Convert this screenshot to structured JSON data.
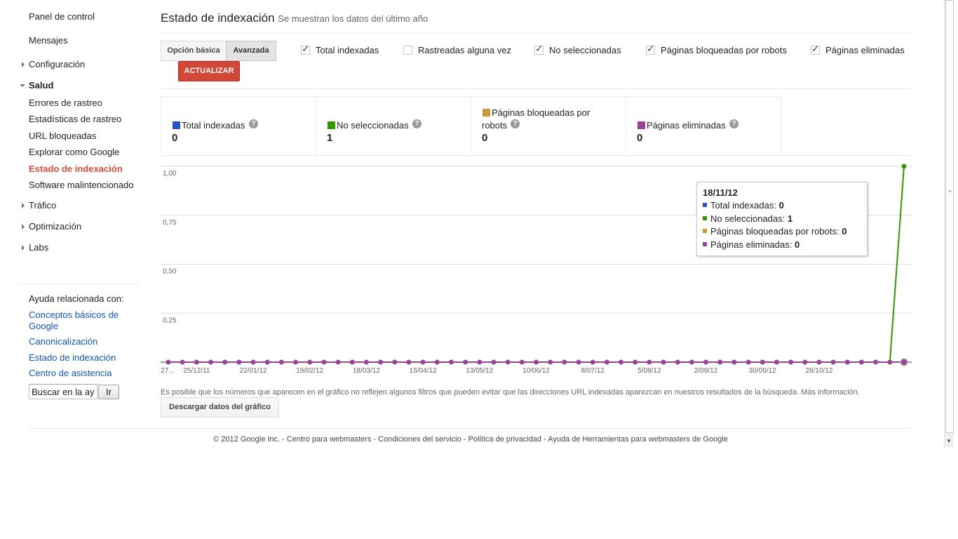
{
  "sidebar": {
    "items": [
      {
        "label": "Panel de control"
      },
      {
        "label": "Mensajes"
      },
      {
        "label": "Configuración"
      },
      {
        "label": "Salud"
      },
      {
        "label": "Errores de rastreo"
      },
      {
        "label": "Estadísticas de rastreo"
      },
      {
        "label": "URL bloqueadas"
      },
      {
        "label": "Explorar como Google"
      },
      {
        "label": "Estado de indexación"
      },
      {
        "label": "Software malintencionado"
      },
      {
        "label": "Tráfico"
      },
      {
        "label": "Optimización"
      },
      {
        "label": "Labs"
      }
    ],
    "help": {
      "title": "Ayuda relacionada con:",
      "links": [
        "Conceptos básicos de Google",
        "Canonicalización",
        "Estado de indexación",
        "Centro de asistencia"
      ],
      "search_value": "Buscar en la ayuda",
      "go_label": "Ir"
    }
  },
  "header": {
    "title": "Estado de indexación",
    "subtitle": "Se muestran los datos del último año"
  },
  "toolbar": {
    "basic_label": "Opción básica",
    "advanced_label": "Avanzada",
    "update_label": "ACTUALIZAR",
    "checkboxes": [
      {
        "label": "Total indexadas",
        "checked": true
      },
      {
        "label": "Rastreadas alguna vez",
        "checked": false
      },
      {
        "label": "No seleccionadas",
        "checked": true
      },
      {
        "label": "Páginas bloqueadas por robots",
        "checked": true
      },
      {
        "label": "Páginas eliminadas",
        "checked": true
      }
    ],
    "check_glyph": "✓"
  },
  "stats": [
    {
      "name": "Total indexadas",
      "value": "0",
      "color": "#2255cc"
    },
    {
      "name": "No seleccionadas",
      "value": "1",
      "color": "#339900"
    },
    {
      "name": "Páginas bloqueadas por robots",
      "value": "0",
      "color": "#cc9933"
    },
    {
      "name": "Páginas eliminadas",
      "value": "0",
      "color": "#994499"
    }
  ],
  "help_glyph": "?",
  "chart_data": {
    "type": "line",
    "ylim": [
      0,
      1
    ],
    "yticks": [
      "1,00",
      "0,75",
      "0,50",
      "0,25"
    ],
    "xtick_labels": [
      "27...",
      "25/12/11",
      "22/01/12",
      "19/02/12",
      "18/03/12",
      "15/04/12",
      "13/05/12",
      "10/06/12",
      "8/07/12",
      "5/08/12",
      "2/09/12",
      "30/09/12",
      "28/10/12"
    ],
    "point_count": 53,
    "series": [
      {
        "name": "Total indexadas",
        "color": "#2255cc",
        "values": "all 0"
      },
      {
        "name": "No seleccionadas",
        "color": "#339900",
        "values": "0 for first 52 weeks, 1 on 18/11/12"
      },
      {
        "name": "Páginas bloqueadas por robots",
        "color": "#cc9933",
        "values": "all 0"
      },
      {
        "name": "Páginas eliminadas",
        "color": "#994499",
        "values": "all 0"
      }
    ]
  },
  "tooltip": {
    "date": "18/11/12",
    "rows": [
      {
        "label": "Total indexadas:",
        "value": "0",
        "color": "#2255cc"
      },
      {
        "label": "No seleccionadas:",
        "value": "1",
        "color": "#339900"
      },
      {
        "label": "Páginas bloqueadas por robots:",
        "value": "0",
        "color": "#cc9933"
      },
      {
        "label": "Páginas eliminadas:",
        "value": "0",
        "color": "#994499"
      }
    ]
  },
  "disclaimer": {
    "text": "Es posible que los números que aparecen en el gráfico no reflejen algunos filtros que pueden evitar que las direcciones URL indexadas aparezcan en nuestros resultados de la búsqueda.",
    "more": "Más información."
  },
  "download_label": "Descargar datos del gráfico",
  "footer": "© 2012 Google Inc. - Centro para webmasters - Condiciones del servicio - Política de privacidad - Ayuda de Herramientas para webmasters de Google",
  "scrollbar": {
    "down_glyph": "▼",
    "grip_glyph": "≡"
  }
}
